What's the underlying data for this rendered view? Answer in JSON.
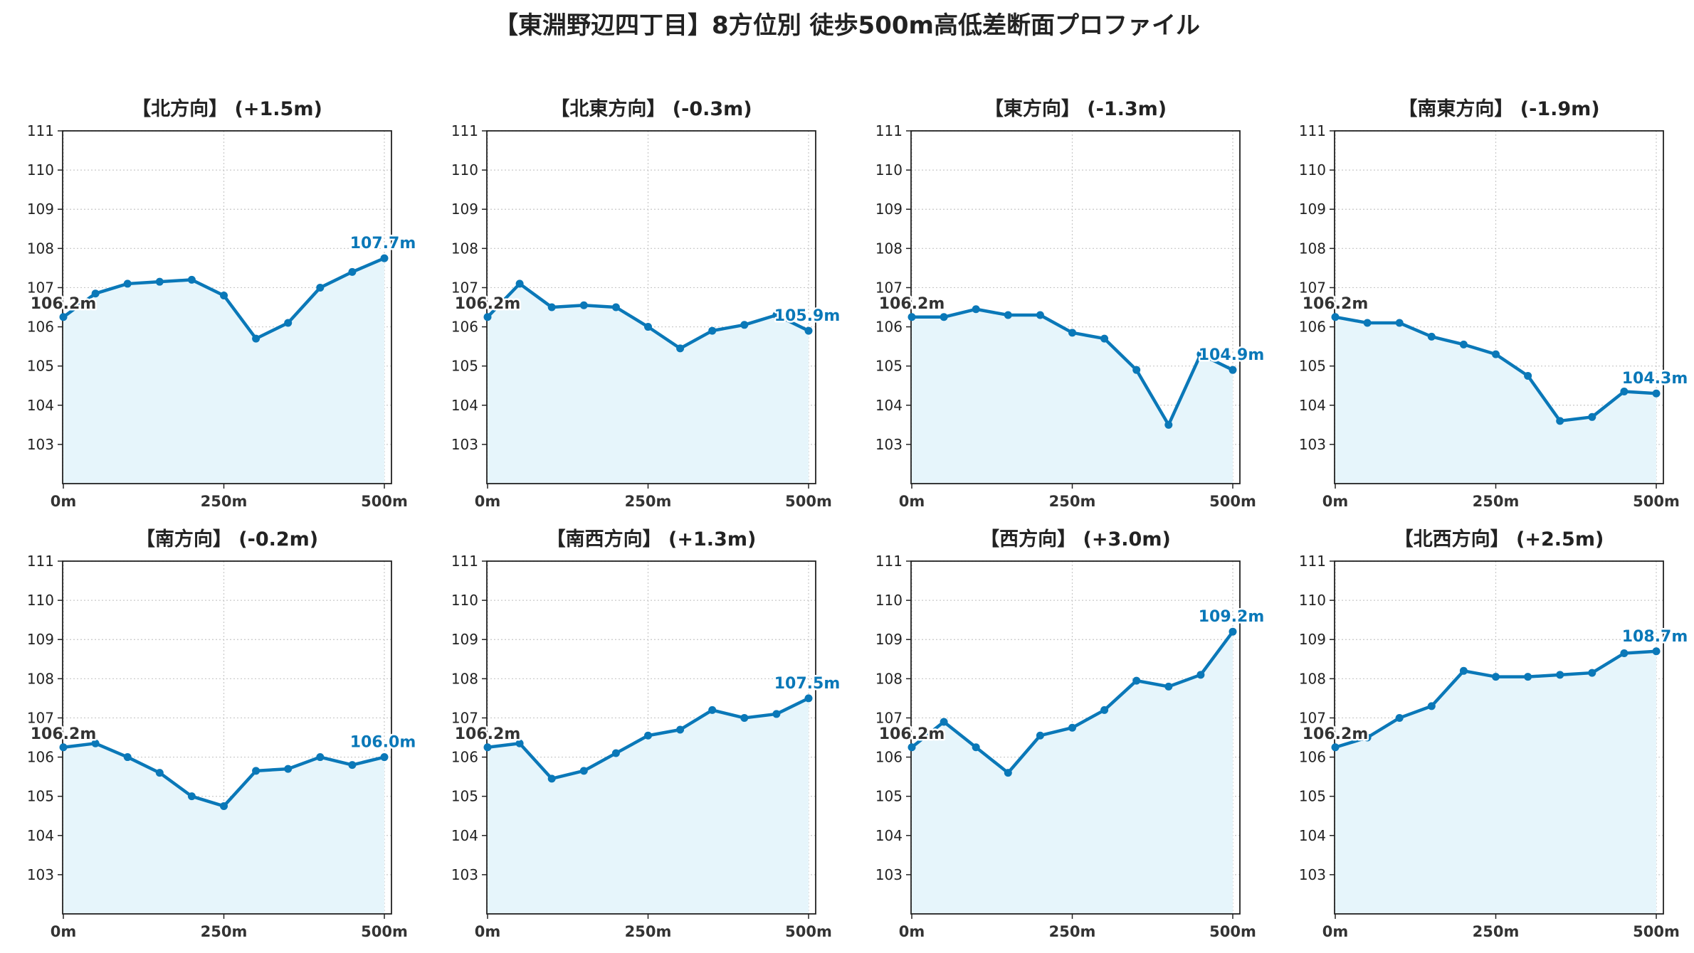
{
  "title": "【東淵野辺四丁目】8方位別 徒歩500m高低差断面プロファイル",
  "colors": {
    "line": "#0a78b8",
    "fill": "#e6f5fb",
    "start_label": "#333333",
    "end_label": "#0a78b8",
    "grid": "#c8c8c8"
  },
  "chart_data": [
    {
      "type": "line",
      "title": "【北方向】 (+1.5m)",
      "x": [
        0,
        50,
        100,
        150,
        200,
        250,
        300,
        350,
        400,
        450,
        500
      ],
      "series": [
        {
          "values": [
            106.25,
            106.85,
            107.1,
            107.15,
            107.2,
            106.8,
            105.7,
            106.1,
            107.0,
            107.4,
            107.75
          ]
        }
      ],
      "start_label": "106.2m",
      "end_label": "107.7m",
      "xticks": [
        "0m",
        "250m",
        "500m"
      ],
      "ylim": [
        102,
        111
      ],
      "yticks": [
        103,
        104,
        105,
        106,
        107,
        108,
        109,
        110,
        111
      ],
      "grid": true
    },
    {
      "type": "line",
      "title": "【北東方向】 (-0.3m)",
      "x": [
        0,
        50,
        100,
        150,
        200,
        250,
        300,
        350,
        400,
        450,
        500
      ],
      "series": [
        {
          "values": [
            106.25,
            107.1,
            106.5,
            106.55,
            106.5,
            106.0,
            105.45,
            105.9,
            106.05,
            106.3,
            105.9
          ]
        }
      ],
      "start_label": "106.2m",
      "end_label": "105.9m",
      "xticks": [
        "0m",
        "250m",
        "500m"
      ],
      "ylim": [
        102,
        111
      ],
      "yticks": [
        103,
        104,
        105,
        106,
        107,
        108,
        109,
        110,
        111
      ],
      "grid": true
    },
    {
      "type": "line",
      "title": "【東方向】 (-1.3m)",
      "x": [
        0,
        50,
        100,
        150,
        200,
        250,
        300,
        350,
        400,
        450,
        500
      ],
      "series": [
        {
          "values": [
            106.25,
            106.25,
            106.45,
            106.3,
            106.3,
            105.85,
            105.7,
            104.9,
            103.5,
            105.3,
            104.9
          ]
        }
      ],
      "start_label": "106.2m",
      "end_label": "104.9m",
      "xticks": [
        "0m",
        "250m",
        "500m"
      ],
      "ylim": [
        102,
        111
      ],
      "yticks": [
        103,
        104,
        105,
        106,
        107,
        108,
        109,
        110,
        111
      ],
      "grid": true
    },
    {
      "type": "line",
      "title": "【南東方向】 (-1.9m)",
      "x": [
        0,
        50,
        100,
        150,
        200,
        250,
        300,
        350,
        400,
        450,
        500
      ],
      "series": [
        {
          "values": [
            106.25,
            106.1,
            106.1,
            105.75,
            105.55,
            105.3,
            104.75,
            103.6,
            103.7,
            104.35,
            104.3
          ]
        }
      ],
      "start_label": "106.2m",
      "end_label": "104.3m",
      "xticks": [
        "0m",
        "250m",
        "500m"
      ],
      "ylim": [
        102,
        111
      ],
      "yticks": [
        103,
        104,
        105,
        106,
        107,
        108,
        109,
        110,
        111
      ],
      "grid": true
    },
    {
      "type": "line",
      "title": "【南方向】 (-0.2m)",
      "x": [
        0,
        50,
        100,
        150,
        200,
        250,
        300,
        350,
        400,
        450,
        500
      ],
      "series": [
        {
          "values": [
            106.25,
            106.35,
            106.0,
            105.6,
            105.0,
            104.75,
            105.65,
            105.7,
            106.0,
            105.8,
            106.0
          ]
        }
      ],
      "start_label": "106.2m",
      "end_label": "106.0m",
      "xticks": [
        "0m",
        "250m",
        "500m"
      ],
      "ylim": [
        102,
        111
      ],
      "yticks": [
        103,
        104,
        105,
        106,
        107,
        108,
        109,
        110,
        111
      ],
      "grid": true
    },
    {
      "type": "line",
      "title": "【南西方向】 (+1.3m)",
      "x": [
        0,
        50,
        100,
        150,
        200,
        250,
        300,
        350,
        400,
        450,
        500
      ],
      "series": [
        {
          "values": [
            106.25,
            106.35,
            105.45,
            105.65,
            106.1,
            106.55,
            106.7,
            107.2,
            107.0,
            107.1,
            107.5
          ]
        }
      ],
      "start_label": "106.2m",
      "end_label": "107.5m",
      "xticks": [
        "0m",
        "250m",
        "500m"
      ],
      "ylim": [
        102,
        111
      ],
      "yticks": [
        103,
        104,
        105,
        106,
        107,
        108,
        109,
        110,
        111
      ],
      "grid": true
    },
    {
      "type": "line",
      "title": "【西方向】 (+3.0m)",
      "x": [
        0,
        50,
        100,
        150,
        200,
        250,
        300,
        350,
        400,
        450,
        500
      ],
      "series": [
        {
          "values": [
            106.25,
            106.9,
            106.25,
            105.6,
            106.55,
            106.75,
            107.2,
            107.95,
            107.8,
            108.1,
            109.2
          ]
        }
      ],
      "start_label": "106.2m",
      "end_label": "109.2m",
      "xticks": [
        "0m",
        "250m",
        "500m"
      ],
      "ylim": [
        102,
        111
      ],
      "yticks": [
        103,
        104,
        105,
        106,
        107,
        108,
        109,
        110,
        111
      ],
      "grid": true
    },
    {
      "type": "line",
      "title": "【北西方向】 (+2.5m)",
      "x": [
        0,
        50,
        100,
        150,
        200,
        250,
        300,
        350,
        400,
        450,
        500
      ],
      "series": [
        {
          "values": [
            106.25,
            106.5,
            107.0,
            107.3,
            108.2,
            108.05,
            108.05,
            108.1,
            108.15,
            108.65,
            108.7
          ]
        }
      ],
      "start_label": "106.2m",
      "end_label": "108.7m",
      "xticks": [
        "0m",
        "250m",
        "500m"
      ],
      "ylim": [
        102,
        111
      ],
      "yticks": [
        103,
        104,
        105,
        106,
        107,
        108,
        109,
        110,
        111
      ],
      "grid": true
    }
  ]
}
